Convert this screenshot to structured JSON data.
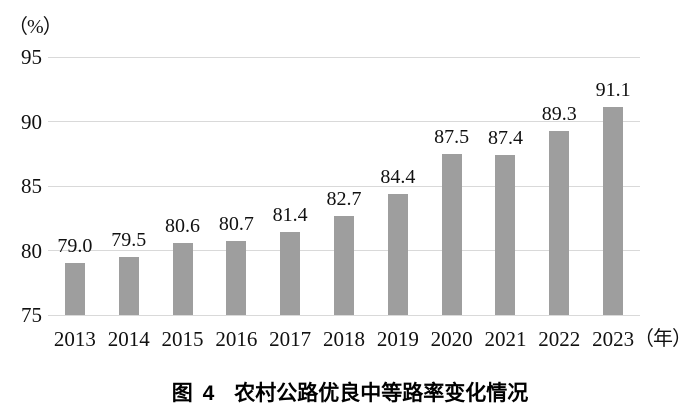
{
  "chart_data": {
    "type": "bar",
    "title": "图4 农村公路优良中等路率变化情况",
    "y_unit_label": "（%）",
    "x_unit_label": "（年）",
    "categories": [
      "2013",
      "2014",
      "2015",
      "2016",
      "2017",
      "2018",
      "2019",
      "2020",
      "2021",
      "2022",
      "2023"
    ],
    "values": [
      79.0,
      79.5,
      80.6,
      80.7,
      81.4,
      82.7,
      84.4,
      87.5,
      87.4,
      89.3,
      91.1
    ],
    "value_labels": [
      "79.0",
      "79.5",
      "80.6",
      "80.7",
      "81.4",
      "82.7",
      "84.4",
      "87.5",
      "87.4",
      "89.3",
      "91.1"
    ],
    "xlabel": "",
    "ylabel": "",
    "ylim": [
      75,
      95
    ],
    "yticks": [
      95,
      90,
      85,
      80,
      75
    ],
    "grid": "horizontal",
    "legend": "none",
    "bar_color": "#9e9e9e",
    "gridline_color": "#d9d9d9",
    "text_color": "#111111"
  },
  "caption": {
    "figure_label": "图 4",
    "title": "农村公路优良中等路率变化情况"
  }
}
